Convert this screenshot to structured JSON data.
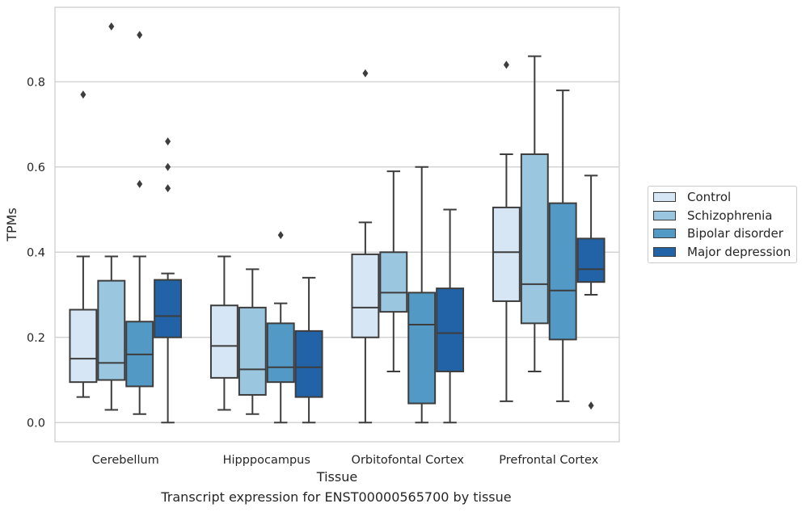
{
  "chart_data": {
    "type": "box",
    "xlabel": "Tissue",
    "ylabel": "TPMs",
    "ylim": [
      -0.045,
      0.975
    ],
    "yticks": [
      "0.0",
      "0.2",
      "0.4",
      "0.6",
      "0.8"
    ],
    "grid": "horizontal",
    "legend_position": "right",
    "categories": [
      "Cerebellum",
      "Hipppocampus",
      "Orbitofontal Cortex",
      "Prefrontal Cortex"
    ],
    "series": [
      {
        "name": "Control",
        "color": "#d6e6f4",
        "boxes": [
          {
            "whislo": 0.06,
            "q1": 0.095,
            "med": 0.15,
            "q3": 0.265,
            "whishi": 0.39,
            "fliers": [
              0.77
            ]
          },
          {
            "whislo": 0.03,
            "q1": 0.105,
            "med": 0.18,
            "q3": 0.275,
            "whishi": 0.39,
            "fliers": []
          },
          {
            "whislo": 0.0,
            "q1": 0.2,
            "med": 0.27,
            "q3": 0.395,
            "whishi": 0.47,
            "fliers": [
              0.82
            ]
          },
          {
            "whislo": 0.05,
            "q1": 0.285,
            "med": 0.4,
            "q3": 0.505,
            "whishi": 0.63,
            "fliers": [
              0.84
            ]
          }
        ]
      },
      {
        "name": "Schizophrenia",
        "color": "#9ac6e0",
        "boxes": [
          {
            "whislo": 0.03,
            "q1": 0.1,
            "med": 0.14,
            "q3": 0.333,
            "whishi": 0.39,
            "fliers": [
              0.93
            ]
          },
          {
            "whislo": 0.02,
            "q1": 0.065,
            "med": 0.125,
            "q3": 0.27,
            "whishi": 0.36,
            "fliers": []
          },
          {
            "whislo": 0.12,
            "q1": 0.26,
            "med": 0.305,
            "q3": 0.4,
            "whishi": 0.59,
            "fliers": []
          },
          {
            "whislo": 0.12,
            "q1": 0.233,
            "med": 0.325,
            "q3": 0.63,
            "whishi": 0.86,
            "fliers": []
          }
        ]
      },
      {
        "name": "Bipolar disorder",
        "color": "#5399c6",
        "boxes": [
          {
            "whislo": 0.02,
            "q1": 0.085,
            "med": 0.16,
            "q3": 0.237,
            "whishi": 0.39,
            "fliers": [
              0.56,
              0.91
            ]
          },
          {
            "whislo": 0.0,
            "q1": 0.095,
            "med": 0.13,
            "q3": 0.233,
            "whishi": 0.28,
            "fliers": [
              0.44
            ]
          },
          {
            "whislo": 0.0,
            "q1": 0.045,
            "med": 0.23,
            "q3": 0.305,
            "whishi": 0.6,
            "fliers": []
          },
          {
            "whislo": 0.05,
            "q1": 0.195,
            "med": 0.31,
            "q3": 0.515,
            "whishi": 0.78,
            "fliers": []
          }
        ]
      },
      {
        "name": "Major depression",
        "color": "#2163a6",
        "boxes": [
          {
            "whislo": 0.0,
            "q1": 0.2,
            "med": 0.25,
            "q3": 0.335,
            "whishi": 0.35,
            "fliers": [
              0.55,
              0.6,
              0.66
            ]
          },
          {
            "whislo": 0.0,
            "q1": 0.06,
            "med": 0.13,
            "q3": 0.215,
            "whishi": 0.34,
            "fliers": []
          },
          {
            "whislo": 0.0,
            "q1": 0.12,
            "med": 0.21,
            "q3": 0.315,
            "whishi": 0.5,
            "fliers": []
          },
          {
            "whislo": 0.3,
            "q1": 0.33,
            "med": 0.36,
            "q3": 0.432,
            "whishi": 0.58,
            "fliers": [
              0.04
            ]
          }
        ]
      }
    ],
    "caption": "Transcript expression for ENST00000565700 by tissue"
  }
}
